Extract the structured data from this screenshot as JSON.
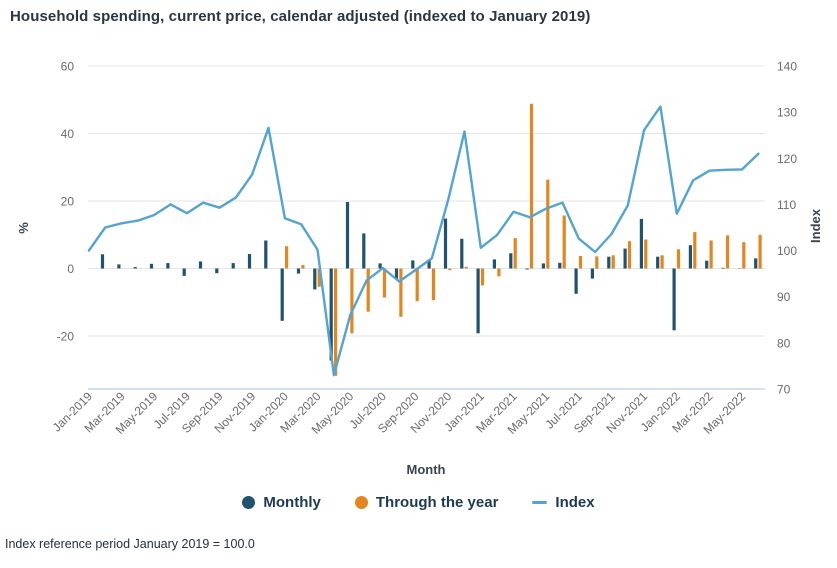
{
  "title": "Household spending, current price, calendar adjusted (indexed to January 2019)",
  "footnote": "Index reference period January 2019 = 100.0",
  "legend": {
    "monthly": "Monthly",
    "through_year": "Through the year",
    "index": "Index"
  },
  "colors": {
    "monthly": "#20536f",
    "through_year": "#e2861f",
    "index_line": "#53a3d3",
    "grid": "#e4e4e4",
    "axis_line": "#b9cfdd",
    "tick_text": "#6b6b6b",
    "text_dark": "#1d3a53"
  },
  "chart_data": {
    "type": "combo-bar-line",
    "title": "Household spending, current price, calendar adjusted (indexed to January 2019)",
    "xlabel": "Month",
    "ylabel_left": "%",
    "ylabel_right": "Index",
    "x_tick_every": 2,
    "grid": true,
    "legend_position": "bottom",
    "left_axis": {
      "ticks": [
        60,
        40,
        20,
        0,
        -20
      ],
      "range": [
        -36.1,
        60
      ]
    },
    "right_axis": {
      "ticks": [
        140,
        130,
        120,
        110,
        100,
        90,
        80,
        70
      ],
      "range": [
        70,
        140
      ]
    },
    "months": [
      "Jan-2019",
      "Feb-2019",
      "Mar-2019",
      "Apr-2019",
      "May-2019",
      "Jun-2019",
      "Jul-2019",
      "Aug-2019",
      "Sep-2019",
      "Oct-2019",
      "Nov-2019",
      "Dec-2019",
      "Jan-2020",
      "Feb-2020",
      "Mar-2020",
      "Apr-2020",
      "May-2020",
      "Jun-2020",
      "Jul-2020",
      "Aug-2020",
      "Sep-2020",
      "Oct-2020",
      "Nov-2020",
      "Dec-2020",
      "Jan-2021",
      "Feb-2021",
      "Mar-2021",
      "Apr-2021",
      "May-2021",
      "Jun-2021",
      "Jul-2021",
      "Aug-2021",
      "Sep-2021",
      "Oct-2021",
      "Nov-2021",
      "Dec-2021",
      "Jan-2022",
      "Feb-2022",
      "Mar-2022",
      "Apr-2022",
      "May-2022",
      "Jun-2022"
    ],
    "series": [
      {
        "name": "Monthly",
        "type": "bar",
        "axis": "left",
        "values": [
          null,
          4.2,
          1.2,
          0.4,
          1.4,
          1.6,
          -2.2,
          2.1,
          -1.4,
          1.6,
          4.3,
          8.3,
          -15.5,
          -1.5,
          -6.2,
          -27.3,
          19.7,
          10.4,
          1.5,
          -3.2,
          2.4,
          2.7,
          14.8,
          8.8,
          -19.2,
          2.7,
          4.5,
          -0.3,
          1.5,
          1.7,
          -7.5,
          -3.0,
          3.5,
          5.9,
          14.7,
          3.5,
          -18.3,
          6.9,
          2.3,
          0.2,
          0.1,
          3.0
        ]
      },
      {
        "name": "Through the year",
        "type": "bar",
        "axis": "left",
        "values": [
          null,
          null,
          null,
          null,
          null,
          null,
          null,
          null,
          null,
          null,
          null,
          null,
          6.6,
          1.0,
          -5.4,
          -31.8,
          -19.2,
          -12.8,
          -8.6,
          -14.3,
          -9.7,
          -9.4,
          -0.5,
          0.5,
          -5.0,
          -2.3,
          9.0,
          48.8,
          26.3,
          15.7,
          3.7,
          3.6,
          3.9,
          8.1,
          8.6,
          3.9,
          5.7,
          10.8,
          8.3,
          9.8,
          7.8,
          10.0
        ]
      },
      {
        "name": "Index",
        "type": "line",
        "axis": "right",
        "values": [
          100.0,
          105.0,
          105.9,
          106.5,
          107.7,
          110.0,
          108.1,
          110.4,
          109.3,
          111.5,
          116.5,
          126.6,
          107.0,
          105.7,
          100.2,
          73.0,
          86.0,
          93.5,
          96.2,
          93.3,
          95.8,
          98.3,
          111.0,
          125.8,
          100.6,
          103.4,
          108.4,
          107.2,
          109.1,
          110.4,
          102.6,
          99.7,
          103.6,
          109.8,
          126.1,
          131.2,
          108.0,
          115.2,
          117.3,
          117.5,
          117.6,
          121.0
        ]
      }
    ]
  }
}
